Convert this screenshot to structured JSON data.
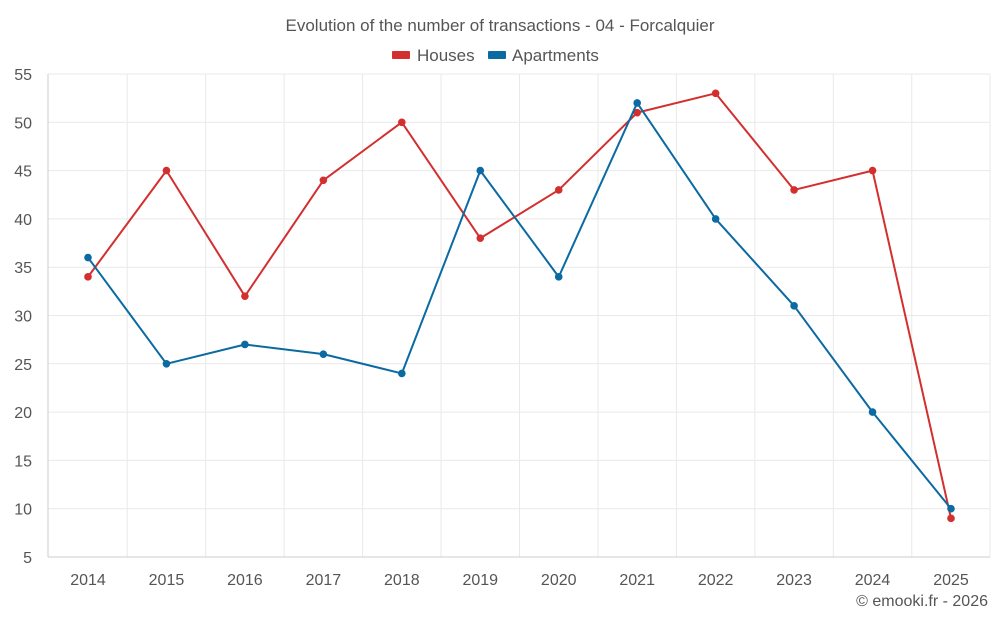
{
  "chart_data": {
    "type": "line",
    "title": "Evolution of the number of transactions - 04 - Forcalquier",
    "categories": [
      "2014",
      "2015",
      "2016",
      "2017",
      "2018",
      "2019",
      "2020",
      "2021",
      "2022",
      "2023",
      "2024",
      "2025"
    ],
    "series": [
      {
        "name": "Houses",
        "color": "#d32f2f",
        "values": [
          34,
          45,
          32,
          44,
          50,
          38,
          43,
          51,
          53,
          43,
          45,
          9
        ]
      },
      {
        "name": "Apartments",
        "color": "#0a6aa1",
        "values": [
          36,
          25,
          27,
          26,
          24,
          45,
          34,
          52,
          40,
          31,
          20,
          10
        ]
      }
    ],
    "y_ticks": [
      5,
      10,
      15,
      20,
      25,
      30,
      35,
      40,
      45,
      50,
      55
    ],
    "ylim": [
      5,
      55
    ],
    "xlabel": "",
    "ylabel": "",
    "grid": true,
    "legend_position": "top-center"
  },
  "credit": "© emooki.fr - 2026"
}
